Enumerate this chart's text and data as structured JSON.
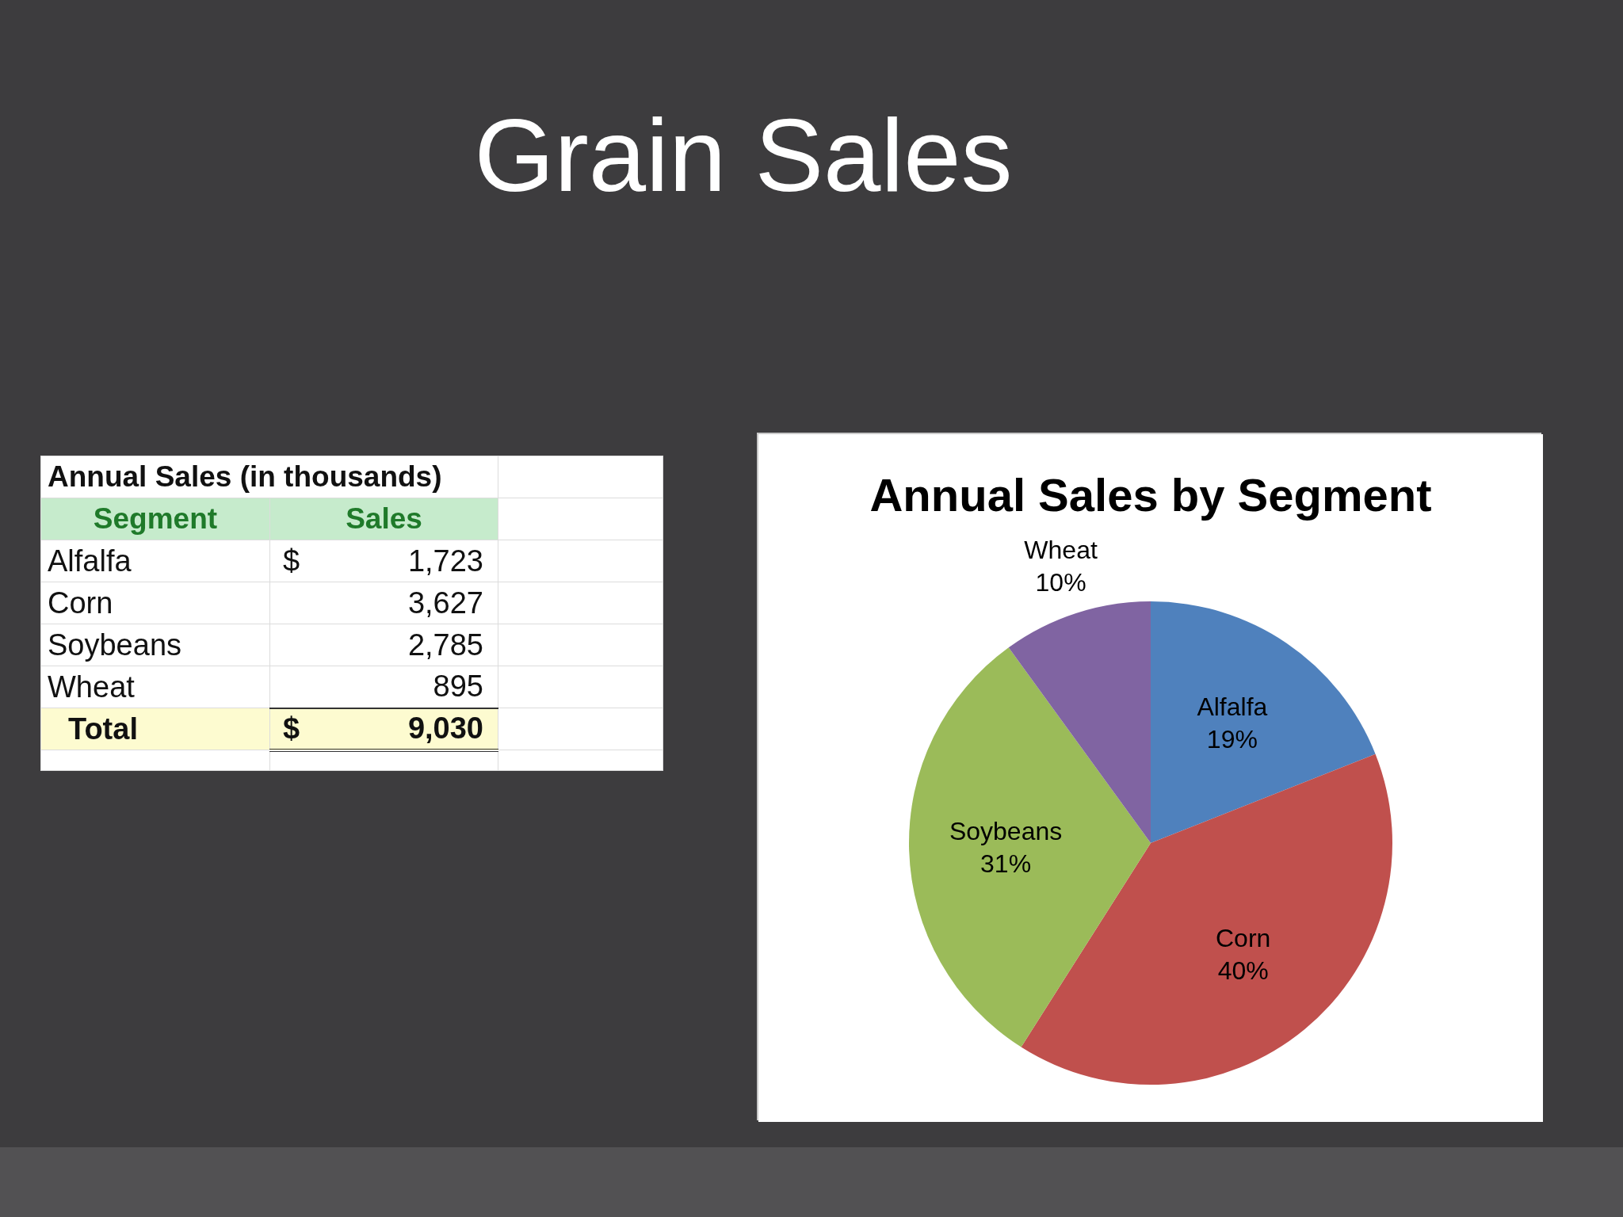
{
  "chart_data": [
    {
      "type": "other",
      "title": "Grain Sales",
      "subtitle": "Annual Sales (in thousands)",
      "xlabel": "Segment",
      "ylabel": "Sales",
      "categories": [
        "Alfalfa",
        "Corn",
        "Soybeans",
        "Wheat"
      ],
      "values": [
        1723,
        3627,
        2785,
        895
      ],
      "value_labels": [
        "1,723",
        "3,627",
        "2,785",
        "895"
      ],
      "totals": [
        "9,030"
      ],
      "annotations": [
        "$",
        "Total",
        "$"
      ]
    },
    {
      "type": "pie",
      "title": "Annual Sales by Segment",
      "categories": [
        "Alfalfa",
        "Corn",
        "Soybeans",
        "Wheat"
      ],
      "values": [
        19,
        40,
        31,
        10
      ],
      "colors": [
        "#4f81bd",
        "#c0504d",
        "#9bbb59",
        "#8064a2"
      ],
      "value_labels": [
        "19%",
        "40%",
        "31%",
        "10%"
      ]
    }
  ]
}
